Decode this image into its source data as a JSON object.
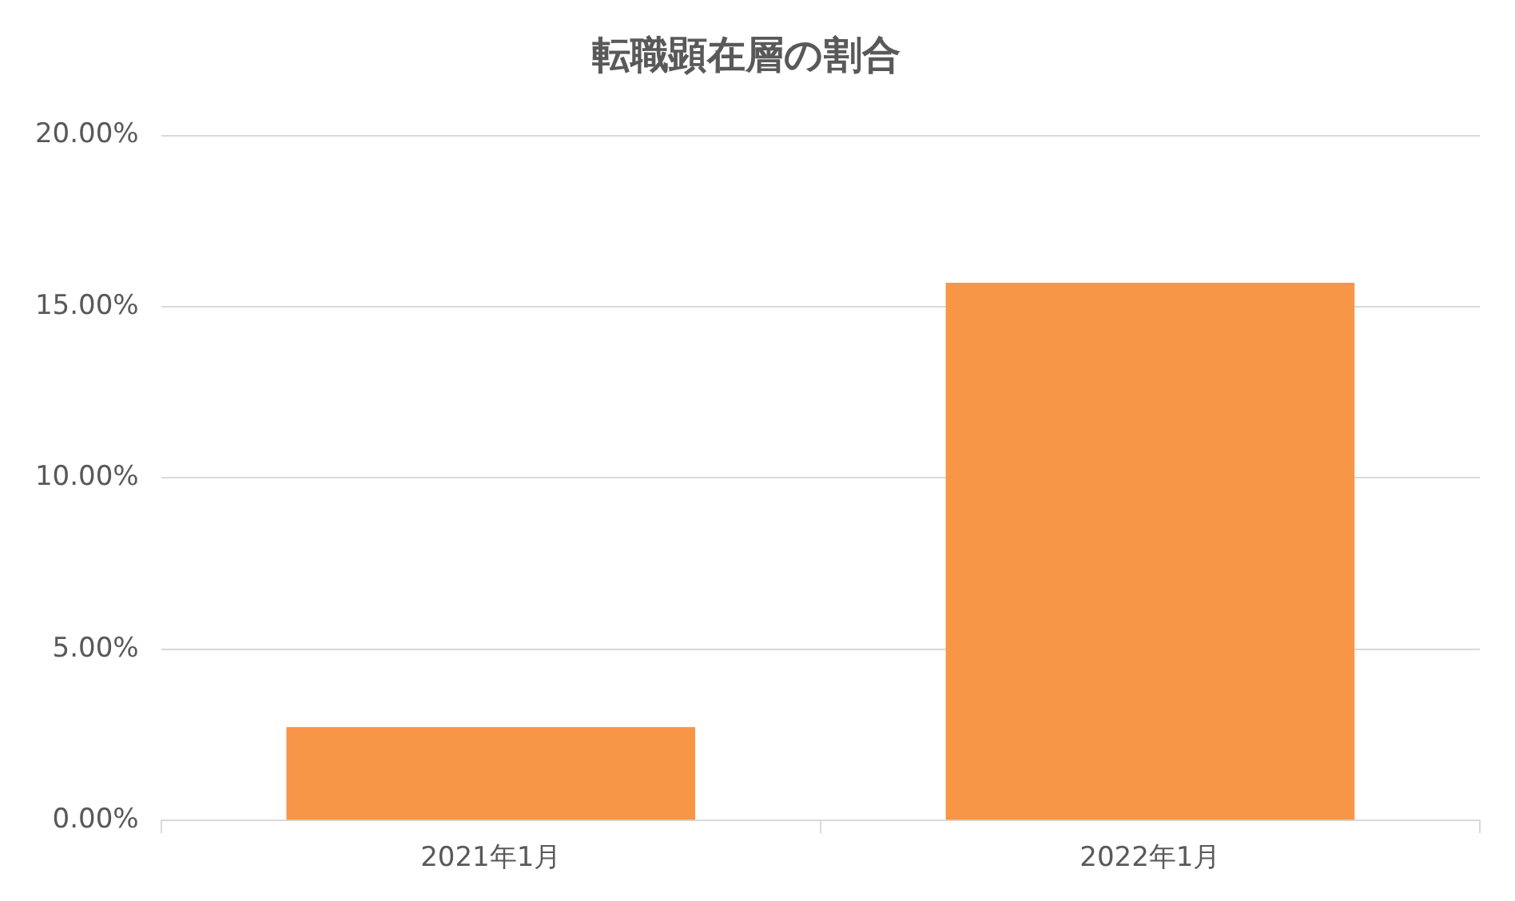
{
  "chart_data": {
    "type": "bar",
    "title": "転職顕在層の割合",
    "categories": [
      "2021年1月",
      "2022年1月"
    ],
    "values": [
      2.73,
      15.7
    ],
    "color": "#f79646",
    "ylim": [
      0,
      20
    ],
    "yticks": [
      {
        "value": 0,
        "label": "0.00%"
      },
      {
        "value": 5,
        "label": "5.00%"
      },
      {
        "value": 10,
        "label": "10.00%"
      },
      {
        "value": 15,
        "label": "15.00%"
      },
      {
        "value": 20,
        "label": "20.00%"
      }
    ],
    "grid": "y",
    "legend": false
  }
}
